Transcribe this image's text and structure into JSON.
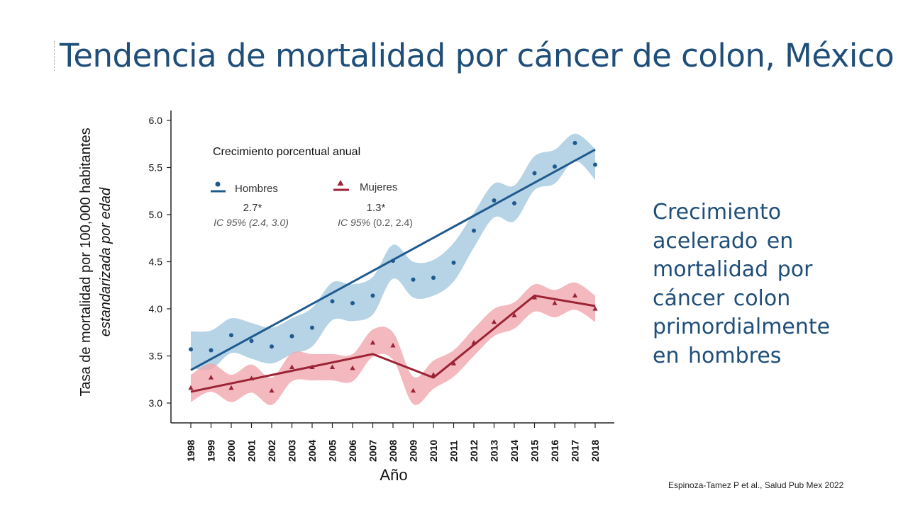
{
  "title": "Tendencia de mortalidad por cáncer de colon, México",
  "side_note": "Crecimiento acelerado en mortalidad por cáncer colon primordialmente en hombres",
  "citation": "Espinoza-Tamez P et al., Salud Pub Mex 2022",
  "colors": {
    "title": "#1f4e79",
    "hombres": "#1f5a8f",
    "hombres_band": "#a9cde0",
    "mujeres": "#9b2335",
    "mujeres_band": "#f0a8ae"
  },
  "chart_data": {
    "type": "line",
    "xlabel": "Año",
    "ylabel": "Tasa de mortalidad por 100,000 habitantes",
    "ylabel_sub": "estandarizada por edad",
    "ylim": [
      2.85,
      6.1
    ],
    "yticks": [
      "6.0",
      "5.5",
      "5.0",
      "4.5",
      "4.0",
      "3.5",
      "3.0"
    ],
    "categories": [
      "1998",
      "1999",
      "2000",
      "2001",
      "2002",
      "2003",
      "2004",
      "2005",
      "2006",
      "2007",
      "2008",
      "2009",
      "2010",
      "2011",
      "2012",
      "2013",
      "2014",
      "2015",
      "2016",
      "2017",
      "2018"
    ],
    "legend_title": "Crecimiento porcentual anual",
    "series": [
      {
        "name": "Hombres",
        "marker": "circle",
        "apc": "2.7*",
        "ci_label": "IC 95%",
        "ci": "(2.4, 3.0)",
        "values": [
          3.57,
          3.56,
          3.72,
          3.66,
          3.6,
          3.71,
          3.8,
          4.08,
          4.06,
          4.14,
          4.51,
          4.31,
          4.33,
          4.49,
          4.83,
          5.15,
          5.12,
          5.44,
          5.51,
          5.76,
          5.53
        ],
        "trend": [
          [
            1998,
            3.35
          ],
          [
            2018,
            5.69
          ]
        ],
        "band_upper": [
          3.76,
          3.77,
          3.9,
          3.85,
          3.8,
          3.9,
          4.01,
          4.28,
          4.26,
          4.34,
          4.68,
          4.5,
          4.52,
          4.7,
          5.02,
          5.33,
          5.31,
          5.62,
          5.69,
          5.86,
          5.7
        ],
        "band_lower": [
          3.37,
          3.36,
          3.53,
          3.47,
          3.42,
          3.52,
          3.6,
          3.88,
          3.87,
          3.94,
          4.32,
          4.12,
          4.14,
          4.29,
          4.65,
          4.97,
          4.93,
          5.26,
          5.33,
          5.57,
          5.37
        ]
      },
      {
        "name": "Mujeres",
        "marker": "triangle",
        "apc": "1.3*",
        "ci_label": "IC 95%",
        "ci": "(0.2, 2.4)",
        "values": [
          3.16,
          3.27,
          3.16,
          3.26,
          3.13,
          3.38,
          3.38,
          3.38,
          3.37,
          3.64,
          3.61,
          3.13,
          3.3,
          3.42,
          3.64,
          3.86,
          3.93,
          4.12,
          4.06,
          4.14,
          4.0
        ],
        "trend": [
          [
            1998,
            3.12
          ],
          [
            2007,
            3.52
          ],
          [
            2010,
            3.27
          ],
          [
            2015,
            4.14
          ],
          [
            2018,
            4.03
          ]
        ],
        "band_upper": [
          3.3,
          3.42,
          3.3,
          3.41,
          3.27,
          3.53,
          3.52,
          3.52,
          3.52,
          3.78,
          3.75,
          3.28,
          3.45,
          3.56,
          3.79,
          4.0,
          4.07,
          4.26,
          4.2,
          4.28,
          4.14
        ],
        "band_lower": [
          3.01,
          3.12,
          3.01,
          3.11,
          2.98,
          3.23,
          3.24,
          3.24,
          3.23,
          3.49,
          3.46,
          2.99,
          3.15,
          3.28,
          3.5,
          3.71,
          3.79,
          3.97,
          3.91,
          3.99,
          3.86
        ]
      }
    ]
  }
}
